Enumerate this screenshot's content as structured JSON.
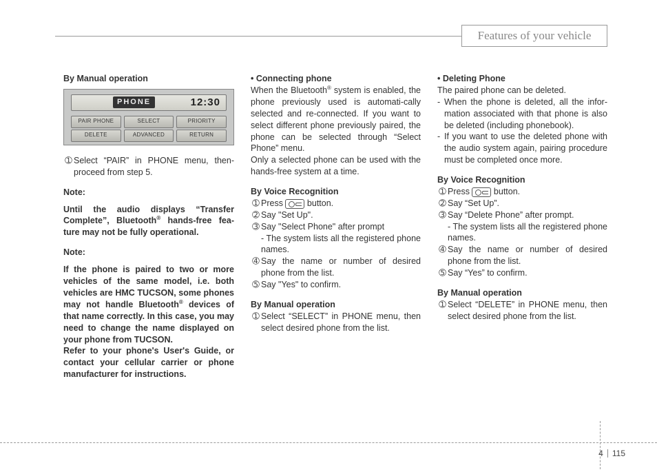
{
  "header": {
    "title": "Features of your vehicle"
  },
  "display": {
    "label": "PHONE",
    "time": "12:30",
    "row1": [
      "PAIR PHONE",
      "SELECT",
      "PRIORITY"
    ],
    "row2": [
      "DELETE",
      "ADVANCED",
      "RETURN"
    ]
  },
  "col1": {
    "h1": "By Manual operation",
    "step1_num": "➀",
    "step1": "Select “PAIR” in PHONE menu, then-proceed from step 5.",
    "note1_h": "Note:",
    "note1": "Until the audio displays “Transfer Complete”, Bluetooth",
    "note1b": " hands-free fea-ture may not be fully operational.",
    "note2_h": "Note:",
    "note2a": "If the phone is paired to two or more vehicles of the same model, i.e. both vehicles are HMC TUCSON, some phones may not handle Bluetooth",
    "note2b": " devices of that name correctly. In this case, you may need to change the name displayed on your phone from TUCSON.",
    "note2c": "Refer to your phone's User's Guide, or contact your cellular carrier or phone manufacturer for instructions."
  },
  "col2": {
    "h1": "• Connecting phone",
    "p1a": "When the Bluetooth",
    "p1b": " system is enabled, the phone previously used is automati-cally selected and re-connected. If you want to select different phone previously paired, the phone can be selected through “Select Phone” menu.",
    "p2": "Only a selected phone can be used with the hands-free system at a time.",
    "h2": "By Voice Recognition",
    "s1n": "➀",
    "s1": "Press ",
    "s1b": " button.",
    "s2n": "➁",
    "s2": "Say \"Set Up\".",
    "s3n": "➂",
    "s3": "Say \"Select Phone\" after prompt",
    "s3sub": "- The system lists all the registered phone names.",
    "s4n": "➃",
    "s4": "Say the name or number of desired phone from the list.",
    "s5n": "➄",
    "s5": "Say \"Yes\" to confirm.",
    "h3": "By Manual operation",
    "m1n": "➀",
    "m1": "Select “SELECT” in PHONE menu, then select desired phone from the list."
  },
  "col3": {
    "h1": "• Deleting Phone",
    "p1": "The paired phone can be deleted.",
    "d1": "When the phone is deleted, all the infor-mation associated with that phone is also be deleted (including phonebook).",
    "d2": "If you want to use the deleted phone with the audio system again, pairing procedure must be completed once more.",
    "h2": "By Voice Recognition",
    "s1n": "➀",
    "s1": "Press ",
    "s1b": " button.",
    "s2n": "➁",
    "s2": "Say “Set Up”.",
    "s3n": "➂",
    "s3": "Say “Delete Phone” after prompt.",
    "s3sub": "- The system lists all the registered phone names.",
    "s4n": "➃",
    "s4": "Say the name or number of desired phone from the list.",
    "s5n": "➄",
    "s5": "Say “Yes” to confirm.",
    "h3": "By Manual operation",
    "m1n": "➀",
    "m1": "Select “DELETE” in PHONE menu, then select desired phone from the list."
  },
  "page": {
    "section": "4",
    "number": "115"
  }
}
